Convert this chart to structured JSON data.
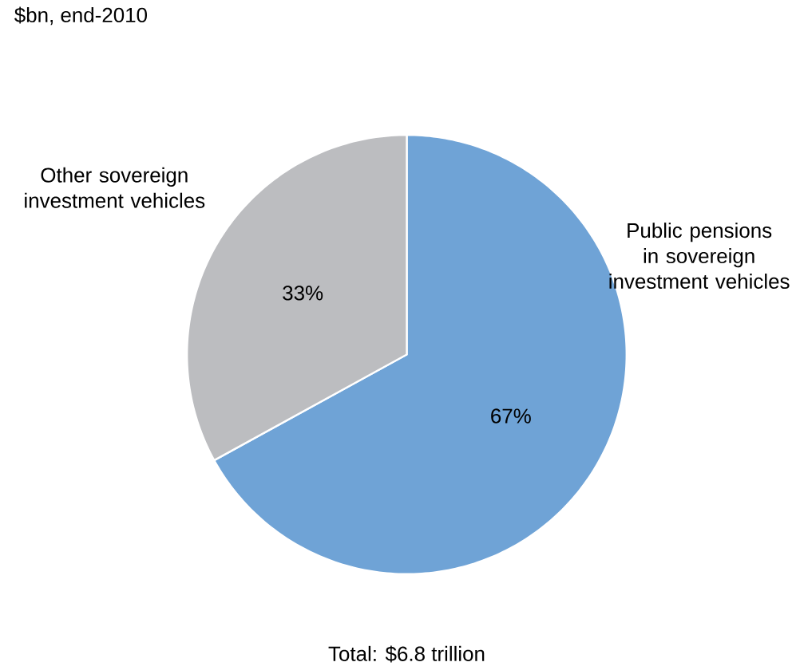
{
  "chart_data": {
    "type": "pie",
    "title": "$bn, end-2010",
    "categories": [
      "Public pensions in sovereign investment vehicles",
      "Other sovereign investment vehicles"
    ],
    "values": [
      67,
      33
    ],
    "colors": [
      "#6fa3d6",
      "#bcbdc0"
    ],
    "value_labels": [
      "67%",
      "33%"
    ],
    "annotations": [
      "Total: $6.8 trillion"
    ]
  }
}
